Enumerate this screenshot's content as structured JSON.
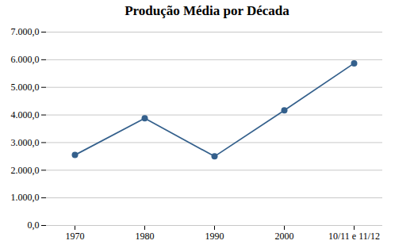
{
  "chart_data": {
    "type": "line",
    "title": "Produção Média por Década",
    "categories": [
      "1970",
      "1980",
      "1990",
      "2000",
      "10/11 e 11/12"
    ],
    "values": [
      2550,
      3880,
      2500,
      4170,
      5870
    ],
    "color": "#34608C",
    "marker": "o",
    "ylim": [
      0,
      7000
    ],
    "yticks": [
      {
        "value": 0,
        "label": "0,0"
      },
      {
        "value": 1000,
        "label": "1.000,0"
      },
      {
        "value": 2000,
        "label": "2.000,0"
      },
      {
        "value": 3000,
        "label": "3.000,0"
      },
      {
        "value": 4000,
        "label": "4.000,0"
      },
      {
        "value": 5000,
        "label": "5.000,0"
      },
      {
        "value": 6000,
        "label": "6.000,0"
      },
      {
        "value": 7000,
        "label": "7.000,0"
      }
    ],
    "grid": true
  }
}
